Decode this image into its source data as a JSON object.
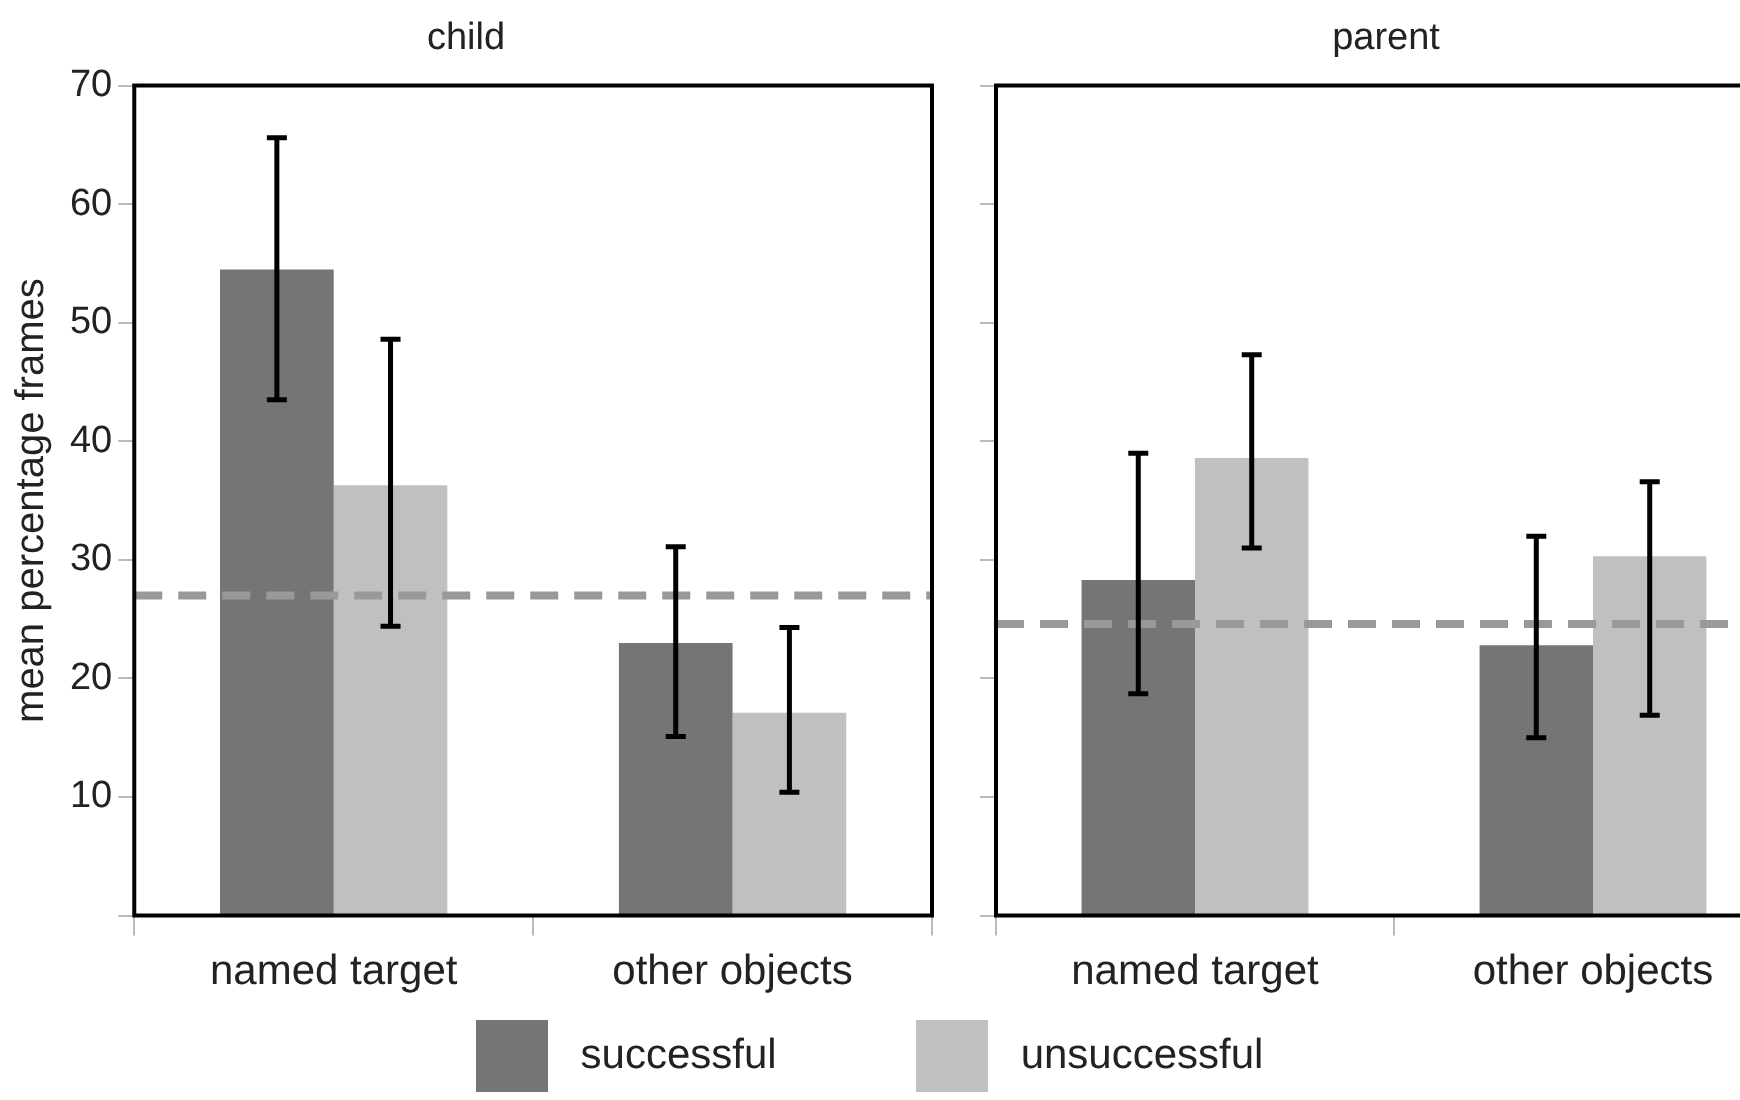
{
  "chart_data": [
    {
      "type": "bar",
      "title": "child",
      "ylabel": "mean percentage frames",
      "categories": [
        "named target",
        "other objects"
      ],
      "series": [
        {
          "name": "successful",
          "color": "#757575",
          "values": [
            54.5,
            23
          ],
          "errors": [
            [
              43.5,
              65.6
            ],
            [
              15.1,
              31.1
            ]
          ]
        },
        {
          "name": "unsuccessful",
          "color": "#c0c0c0",
          "values": [
            36.3,
            17.1
          ],
          "errors": [
            [
              24.4,
              48.6
            ],
            [
              10.4,
              24.3
            ]
          ]
        }
      ],
      "ylim": [
        0,
        70
      ],
      "yticks": [
        {
          "value": 0,
          "label": null
        },
        10,
        20,
        30,
        40,
        50,
        60,
        70
      ],
      "grid": false,
      "legend": "bottom",
      "ref_lines": [
        {
          "axis": "y",
          "value": 27,
          "color": "#999999",
          "line_style": "dashed"
        }
      ]
    },
    {
      "type": "bar",
      "title": "parent",
      "categories": [
        "named target",
        "other objects"
      ],
      "series": [
        {
          "color": "#757575",
          "values": [
            28.3,
            22.8
          ],
          "errors": [
            [
              18.7,
              39
            ],
            [
              15,
              32
            ]
          ]
        },
        {
          "color": "#c0c0c0",
          "values": [
            38.6,
            30.3
          ],
          "errors": [
            [
              31,
              47.3
            ],
            [
              16.9,
              36.6
            ]
          ]
        }
      ],
      "ylim": [
        0,
        70
      ],
      "yticks": [
        {
          "value": 0,
          "label": null
        },
        {
          "value": 10,
          "label": null
        },
        {
          "value": 20,
          "label": null
        },
        {
          "value": 30,
          "label": null
        },
        {
          "value": 40,
          "label": null
        },
        {
          "value": 50,
          "label": null
        },
        {
          "value": 60,
          "label": null
        },
        {
          "value": 70,
          "label": null
        }
      ],
      "grid": false,
      "tick_labels": "x",
      "ref_lines": [
        {
          "axis": "y",
          "value": 24.6,
          "color": "#999999",
          "line_style": "dashed"
        }
      ]
    }
  ]
}
